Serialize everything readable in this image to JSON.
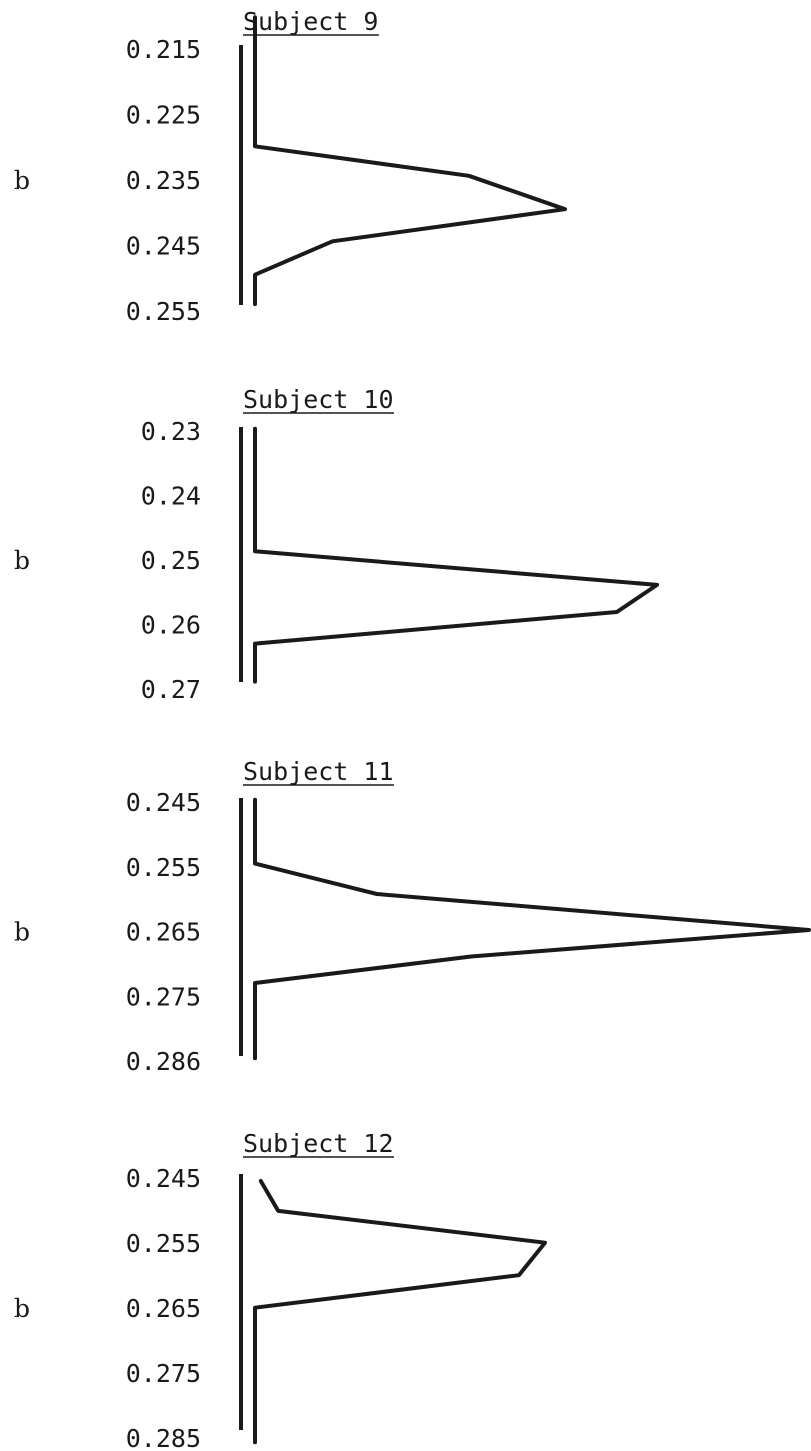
{
  "chart_data": [
    {
      "type": "line",
      "title": "Subject 9",
      "ylabel": "b",
      "yticks": [
        "0.215",
        "0.225",
        "0.235",
        "0.245",
        "0.255"
      ],
      "ylim": [
        0.215,
        0.255
      ],
      "profile": [
        {
          "b": 0.21,
          "v": 0
        },
        {
          "b": 0.2297,
          "v": 0
        },
        {
          "b": 0.2342,
          "v": 0.69
        },
        {
          "b": 0.2393,
          "v": 1.0
        },
        {
          "b": 0.2442,
          "v": 0.25
        },
        {
          "b": 0.2493,
          "v": 0
        },
        {
          "b": 0.2538,
          "v": 0
        }
      ]
    },
    {
      "type": "line",
      "title": "Subject 10",
      "ylabel": "b",
      "yticks": [
        "0.23",
        "0.24",
        "0.25",
        "0.26",
        "0.27"
      ],
      "ylim": [
        0.23,
        0.27
      ],
      "profile": [
        {
          "b": 0.2295,
          "v": 0
        },
        {
          "b": 0.2485,
          "v": 0
        },
        {
          "b": 0.2537,
          "v": 1.0
        },
        {
          "b": 0.2579,
          "v": 0.9
        },
        {
          "b": 0.2628,
          "v": 0
        },
        {
          "b": 0.2687,
          "v": 0
        }
      ]
    },
    {
      "type": "line",
      "title": "Subject 11",
      "ylabel": "b",
      "yticks": [
        "0.245",
        "0.255",
        "0.265",
        "0.275",
        "0.286"
      ],
      "ylim": [
        0.245,
        0.286
      ],
      "profile": [
        {
          "b": 0.2445,
          "v": 0
        },
        {
          "b": 0.2546,
          "v": 0
        },
        {
          "b": 0.2594,
          "v": 0.22
        },
        {
          "b": 0.2651,
          "v": 1.0
        },
        {
          "b": 0.2693,
          "v": 0.39
        },
        {
          "b": 0.2735,
          "v": 0
        },
        {
          "b": 0.2854,
          "v": 0
        }
      ]
    },
    {
      "type": "line",
      "title": "Subject 12",
      "ylabel": "b",
      "yticks": [
        "0.245",
        "0.255",
        "0.265",
        "0.275",
        "0.285"
      ],
      "ylim": [
        0.245,
        0.285
      ],
      "profile": [
        {
          "b": 0.2453,
          "v": 0.02
        },
        {
          "b": 0.2499,
          "v": 0.08
        },
        {
          "b": 0.2548,
          "v": 1.0
        },
        {
          "b": 0.2598,
          "v": 0.91
        },
        {
          "b": 0.2648,
          "v": 0
        },
        {
          "b": 0.2855,
          "v": 0
        }
      ]
    }
  ]
}
